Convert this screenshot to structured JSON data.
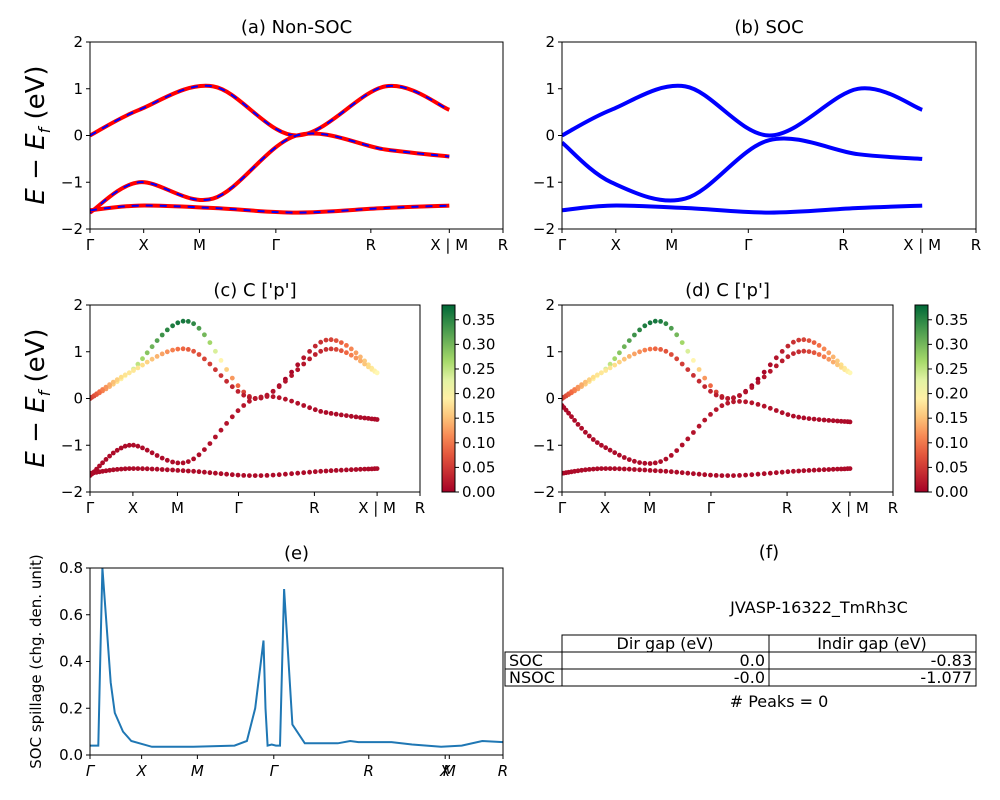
{
  "figure_id": "JVASP-16322_TmRh3C",
  "ylabel_band": "E − E_f (eV)",
  "ylabel_band_display": "E − E",
  "ylabel_band_sub": "f",
  "ylabel_band_unit": " (eV)",
  "colors": {
    "soc_band": "#0000ff",
    "nsoc_band": "#ff0000",
    "spillage_line": "#1f77b4"
  },
  "chart_data": [
    {
      "panel": "a",
      "type": "line",
      "title": "(a) Non-SOC",
      "xticks": [
        "Γ",
        "X",
        "M",
        "Γ",
        "R",
        "X | M",
        "R"
      ],
      "ylim": [
        -2,
        2
      ],
      "yticks": [
        "2",
        "1",
        "0",
        "−1",
        "−2"
      ],
      "series": [
        {
          "color": "#ff0000",
          "dashed_with": "#0000ff",
          "x": [
            0,
            0.1,
            0.25,
            0.42,
            0.6,
            0.73
          ],
          "y": [
            0,
            0.55,
            1.05,
            0,
            1.05,
            0.55
          ]
        },
        {
          "color": "#ff0000",
          "dashed_with": "#0000ff",
          "x": [
            0,
            0.1,
            0.25,
            0.42,
            0.6,
            0.73
          ],
          "y": [
            -1.65,
            -1.0,
            -1.35,
            0,
            -0.3,
            -0.45
          ]
        },
        {
          "color": "#ff0000",
          "dashed_with": "#0000ff",
          "x": [
            0,
            0.1,
            0.25,
            0.42,
            0.6,
            0.73
          ],
          "y": [
            -1.6,
            -1.5,
            -1.55,
            -1.65,
            -1.55,
            -1.5
          ]
        }
      ]
    },
    {
      "panel": "b",
      "type": "line",
      "title": "(b) SOC",
      "xticks": [
        "Γ",
        "X",
        "M",
        "Γ",
        "R",
        "X | M",
        "R"
      ],
      "ylim": [
        -2,
        2
      ],
      "yticks": [
        "2",
        "1",
        "0",
        "−1",
        "−2"
      ],
      "series": [
        {
          "color": "#0000ff",
          "x": [
            0,
            0.1,
            0.25,
            0.42,
            0.6,
            0.73
          ],
          "y": [
            0,
            0.55,
            1.05,
            0,
            1.0,
            0.55
          ]
        },
        {
          "color": "#0000ff",
          "x": [
            0,
            0.1,
            0.25,
            0.42,
            0.6,
            0.73
          ],
          "y": [
            -0.15,
            -1.0,
            -1.35,
            -0.1,
            -0.4,
            -0.5
          ]
        },
        {
          "color": "#0000ff",
          "x": [
            0,
            0.1,
            0.25,
            0.42,
            0.6,
            0.73
          ],
          "y": [
            -1.6,
            -1.5,
            -1.55,
            -1.65,
            -1.55,
            -1.5
          ]
        }
      ]
    },
    {
      "panel": "c",
      "type": "scatter",
      "title": "(c)  C ['p']",
      "xticks": [
        "Γ",
        "X",
        "M",
        "Γ",
        "R",
        "X | M",
        "R"
      ],
      "ylim": [
        -2,
        2
      ],
      "yticks": [
        "2",
        "1",
        "0",
        "−1",
        "−2"
      ],
      "colorbar": {
        "min": 0.0,
        "max": 0.38,
        "ticks": [
          "0.35",
          "0.30",
          "0.25",
          "0.20",
          "0.15",
          "0.10",
          "0.05",
          "0.00"
        ]
      },
      "series": [
        {
          "x": [
            0,
            0.1,
            0.25,
            0.42,
            0.6,
            0.73
          ],
          "y": [
            0,
            0.55,
            1.65,
            0,
            1.25,
            0.55
          ],
          "weight": [
            0.05,
            0.22,
            0.36,
            0.02,
            0.05,
            0.2
          ]
        },
        {
          "x": [
            0,
            0.1,
            0.25,
            0.42,
            0.6,
            0.73
          ],
          "y": [
            0,
            0.55,
            1.05,
            0,
            1.05,
            0.55
          ],
          "weight": [
            0.05,
            0.18,
            0.08,
            0.02,
            0.04,
            0.2
          ]
        },
        {
          "x": [
            0,
            0.1,
            0.25,
            0.42,
            0.6,
            0.73
          ],
          "y": [
            -1.65,
            -1.0,
            -1.35,
            0,
            -0.3,
            -0.45
          ],
          "weight": [
            0.01,
            0.01,
            0.01,
            0.02,
            0.01,
            0.01
          ]
        },
        {
          "x": [
            0,
            0.1,
            0.25,
            0.42,
            0.6,
            0.73
          ],
          "y": [
            -1.6,
            -1.5,
            -1.55,
            -1.65,
            -1.55,
            -1.5
          ],
          "weight": [
            0.01,
            0.01,
            0.01,
            0.01,
            0.01,
            0.01
          ]
        }
      ]
    },
    {
      "panel": "d",
      "type": "scatter",
      "title": "(d) C ['p']",
      "xticks": [
        "Γ",
        "X",
        "M",
        "Γ",
        "R",
        "X | M",
        "R"
      ],
      "ylim": [
        -2,
        2
      ],
      "yticks": [
        "2",
        "1",
        "0",
        "−1",
        "−2"
      ],
      "colorbar": {
        "min": 0.0,
        "max": 0.38,
        "ticks": [
          "0.35",
          "0.30",
          "0.25",
          "0.20",
          "0.15",
          "0.10",
          "0.05",
          "0.00"
        ]
      },
      "series": [
        {
          "x": [
            0,
            0.1,
            0.25,
            0.42,
            0.6,
            0.73
          ],
          "y": [
            0,
            0.55,
            1.65,
            0,
            1.25,
            0.55
          ],
          "weight": [
            0.05,
            0.22,
            0.36,
            0.02,
            0.05,
            0.2
          ]
        },
        {
          "x": [
            0,
            0.1,
            0.25,
            0.42,
            0.6,
            0.73
          ],
          "y": [
            0,
            0.55,
            1.05,
            0,
            1.0,
            0.55
          ],
          "weight": [
            0.05,
            0.18,
            0.08,
            0.02,
            0.04,
            0.2
          ]
        },
        {
          "x": [
            0,
            0.1,
            0.25,
            0.42,
            0.6,
            0.73
          ],
          "y": [
            -0.15,
            -1.0,
            -1.35,
            -0.1,
            -0.4,
            -0.5
          ],
          "weight": [
            0.01,
            0.01,
            0.01,
            0.02,
            0.01,
            0.01
          ]
        },
        {
          "x": [
            0,
            0.1,
            0.25,
            0.42,
            0.6,
            0.73
          ],
          "y": [
            -1.6,
            -1.5,
            -1.55,
            -1.65,
            -1.55,
            -1.5
          ],
          "weight": [
            0.01,
            0.01,
            0.01,
            0.01,
            0.01,
            0.01
          ]
        }
      ]
    },
    {
      "panel": "e",
      "type": "line",
      "title": "(e)",
      "ylabel": "SOC spillage (chg. den. unit)",
      "xticks": [
        "Γ",
        "X",
        "M",
        "Γ",
        "R",
        "X",
        "M",
        "R"
      ],
      "ylim": [
        0,
        0.8
      ],
      "yticks": [
        "0.8",
        "0.6",
        "0.4",
        "0.2",
        "0.0"
      ],
      "series": [
        {
          "color": "#1f77b4",
          "x": [
            0,
            0.02,
            0.025,
            0.03,
            0.04,
            0.05,
            0.06,
            0.08,
            0.1,
            0.15,
            0.25,
            0.35,
            0.38,
            0.4,
            0.42,
            0.425,
            0.43,
            0.44,
            0.45,
            0.46,
            0.47,
            0.49,
            0.52,
            0.6,
            0.63,
            0.65,
            0.7,
            0.73,
            0.78,
            0.85,
            0.9,
            0.95,
            1.0
          ],
          "y": [
            0.04,
            0.04,
            0.42,
            0.8,
            0.56,
            0.31,
            0.18,
            0.1,
            0.06,
            0.035,
            0.035,
            0.04,
            0.06,
            0.2,
            0.49,
            0.2,
            0.04,
            0.045,
            0.04,
            0.04,
            0.71,
            0.13,
            0.05,
            0.05,
            0.06,
            0.055,
            0.055,
            0.055,
            0.045,
            0.035,
            0.04,
            0.06,
            0.055
          ]
        }
      ]
    },
    {
      "panel": "f",
      "type": "table",
      "title": "(f)",
      "caption": "JVASP-16322_TmRh3C",
      "columns": [
        "",
        "Dir gap (eV)",
        "Indir gap (eV)"
      ],
      "rows": [
        [
          "SOC",
          "0.0",
          "-0.83"
        ],
        [
          "NSOC",
          "-0.0",
          "-1.077"
        ]
      ],
      "footer": "# Peaks = 0"
    }
  ]
}
